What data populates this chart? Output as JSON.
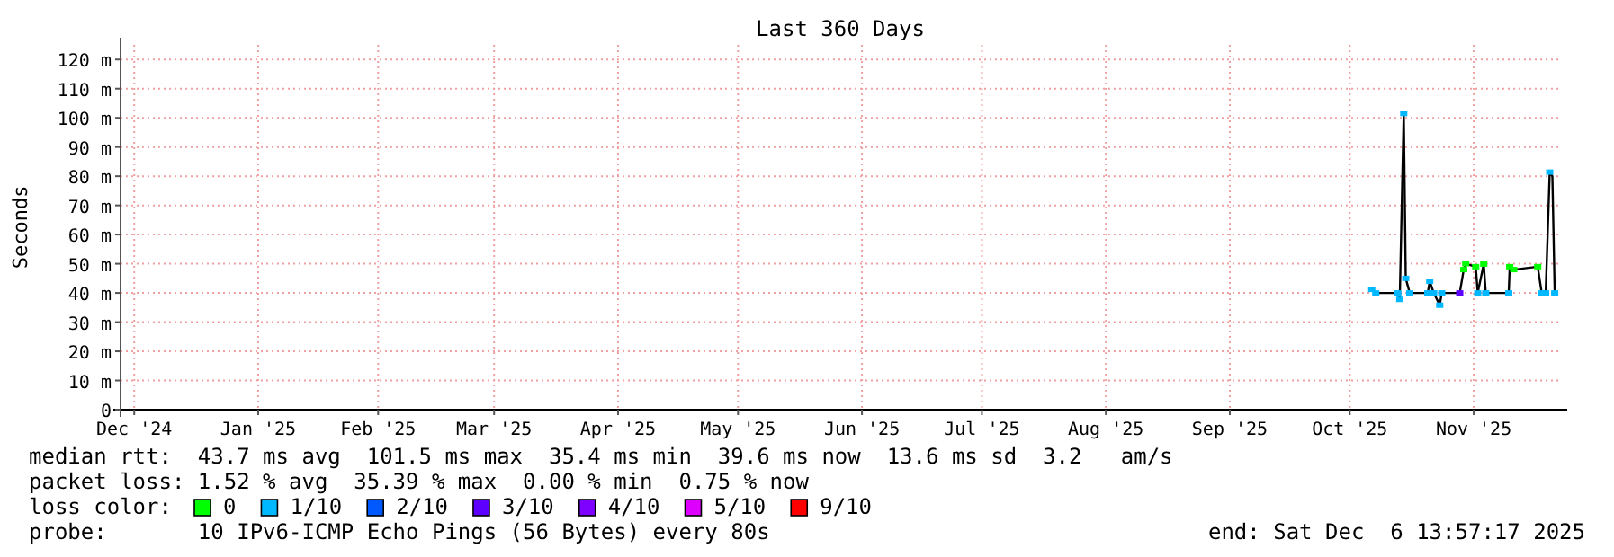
{
  "chart_data": {
    "type": "line",
    "title": "Last 360 Days",
    "ylabel": "Seconds",
    "xlim": [
      "2024-12-11T13:57",
      "2025-12-06T13:57"
    ],
    "xticks": [
      {
        "value": "2024-12-15",
        "label": "Dec '24"
      },
      {
        "value": "2025-01-15",
        "label": "Jan '25"
      },
      {
        "value": "2025-02-14",
        "label": "Feb '25"
      },
      {
        "value": "2025-03-15",
        "label": "Mar '25"
      },
      {
        "value": "2025-04-15",
        "label": "Apr '25"
      },
      {
        "value": "2025-05-15",
        "label": "May '25"
      },
      {
        "value": "2025-06-15",
        "label": "Jun '25"
      },
      {
        "value": "2025-07-15",
        "label": "Jul '25"
      },
      {
        "value": "2025-08-15",
        "label": "Aug '25"
      },
      {
        "value": "2025-09-15",
        "label": "Sep '25"
      },
      {
        "value": "2025-10-15",
        "label": "Oct '25"
      },
      {
        "value": "2025-11-15",
        "label": "Nov '25"
      }
    ],
    "ylim": [
      0,
      125
    ],
    "yticks": [
      0,
      {
        "value": 10,
        "label": "10 m"
      },
      {
        "value": 20,
        "label": "20 m"
      },
      {
        "value": 30,
        "label": "30 m"
      },
      {
        "value": 40,
        "label": "40 m"
      },
      {
        "value": 50,
        "label": "50 m"
      },
      {
        "value": 60,
        "label": "60 m"
      },
      {
        "value": 70,
        "label": "70 m"
      },
      {
        "value": 80,
        "label": "80 m"
      },
      {
        "value": 90,
        "label": "90 m"
      },
      {
        "value": 100,
        "label": "100 m"
      },
      {
        "value": 110,
        "label": "110 m"
      },
      {
        "value": 120,
        "label": "120 m"
      }
    ],
    "grid": true,
    "legend": "bottom",
    "legend_title": "loss color:",
    "series": [
      {
        "color": "#000000",
        "marker": "none",
        "x": [
          "2025-10-20T12:00",
          "2025-10-21T12:00",
          "2025-10-27T00:00",
          "2025-10-27T12:00",
          "2025-10-28T12:00",
          "2025-10-29T00:00",
          "2025-10-30T00:00",
          "2025-11-03T12:00",
          "2025-11-04T00:00",
          "2025-11-05T00:00",
          "2025-11-06T12:00",
          "2025-11-07T00:00",
          "2025-11-11T12:00",
          "2025-11-12T12:00",
          "2025-11-13T00:00",
          "2025-11-15T12:00",
          "2025-11-16T00:00",
          "2025-11-17T12:00",
          "2025-11-18T00:00",
          "2025-11-23T18:00",
          "2025-11-24T00:00",
          "2025-11-25T00:00",
          "2025-12-01T00:00",
          "2025-12-02T00:00",
          "2025-12-03T00:00",
          "2025-12-04T00:00",
          "2025-12-04T16:00",
          "2025-12-05T06:00"
        ],
        "values": [
          41.2,
          40,
          40,
          37.8,
          101.5,
          45,
          40,
          40,
          44,
          40,
          35.8,
          40,
          40,
          48,
          50,
          49,
          40,
          49.9,
          40,
          40,
          49,
          48,
          49,
          40,
          40,
          81.4,
          80,
          40
        ]
      },
      {
        "type": "scatter",
        "name": "0",
        "color": "#00ff00",
        "marker": "square",
        "x": [
          "2025-11-12T12:00",
          "2025-11-13T00:00",
          "2025-11-15T12:00",
          "2025-11-17T12:00",
          "2025-11-24T00:00",
          "2025-11-25T00:00",
          "2025-12-01T00:00"
        ],
        "values": [
          48,
          50,
          49,
          49.9,
          49,
          48,
          49
        ]
      },
      {
        "type": "scatter",
        "name": "1/10",
        "color": "#00b8ff",
        "marker": "square",
        "x": [
          "2025-10-20T12:00",
          "2025-10-21T12:00",
          "2025-10-27T00:00",
          "2025-10-27T12:00",
          "2025-10-28T12:00",
          "2025-10-29T00:00",
          "2025-10-30T00:00",
          "2025-11-03T12:00",
          "2025-11-04T00:00",
          "2025-11-05T00:00",
          "2025-11-06T12:00",
          "2025-11-07T00:00",
          "2025-11-16T00:00",
          "2025-11-18T00:00",
          "2025-11-23T18:00",
          "2025-12-02T00:00",
          "2025-12-03T00:00",
          "2025-12-04T00:00",
          "2025-12-05T06:00"
        ],
        "values": [
          41.2,
          40,
          40,
          37.8,
          101.5,
          45,
          40,
          40,
          44,
          40,
          35.8,
          40,
          40,
          40,
          40,
          40,
          40,
          81.4,
          40
        ]
      },
      {
        "type": "scatter",
        "name": "2/10",
        "color": "#0059ff",
        "marker": "square"
      },
      {
        "type": "scatter",
        "name": "3/10",
        "color": "#5e00ff",
        "marker": "square",
        "x": [
          "2025-11-11T12:00"
        ],
        "values": [
          40
        ]
      },
      {
        "type": "scatter",
        "name": "4/10",
        "color": "#7e00ff",
        "marker": "square"
      },
      {
        "type": "scatter",
        "name": "5/10",
        "color": "#dd00ff",
        "marker": "square"
      },
      {
        "type": "scatter",
        "name": "9/10",
        "color": "#ff0000",
        "marker": "square"
      }
    ],
    "annotations": [
      "median rtt:  43.7 ms avg  101.5 ms max  35.4 ms min  39.6 ms now  13.6 ms sd  3.2   am/s",
      "packet loss: 1.52 % avg  35.39 % max  0.00 % min  0.75 % now",
      "probe:       10 IPv6-ICMP Echo Pings (56 Bytes) every 80s",
      "end: Sat Dec  6 13:57:17 2025"
    ]
  }
}
